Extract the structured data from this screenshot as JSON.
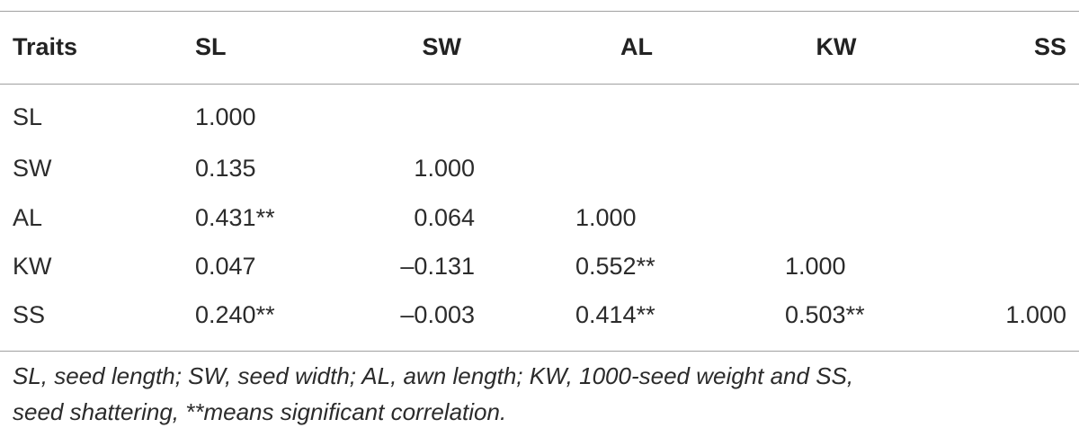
{
  "table": {
    "header": [
      "Traits",
      "SL",
      "SW",
      "AL",
      "KW",
      "SS"
    ],
    "rows": [
      [
        "SL",
        "1.000"
      ],
      [
        "SW",
        "0.135",
        "1.000"
      ],
      [
        "AL",
        "0.431**",
        "0.064",
        "1.000"
      ],
      [
        "KW",
        "0.047",
        "–0.131",
        "0.552**",
        "1.000"
      ],
      [
        "SS",
        "0.240**",
        "–0.003",
        "0.414**",
        "0.503**",
        "1.000"
      ]
    ],
    "footnote": [
      "SL, seed length; SW, seed width; AL, awn length; KW, 1000-seed weight and SS,",
      "seed shattering, **means significant correlation."
    ]
  }
}
